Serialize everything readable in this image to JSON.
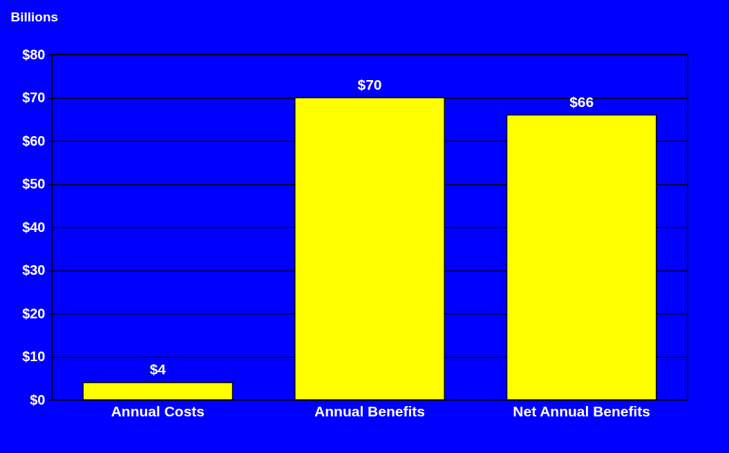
{
  "chart_data": {
    "type": "bar",
    "ylabel": "Billions",
    "categories": [
      "Annual Costs",
      "Annual Benefits",
      "Net Annual Benefits"
    ],
    "values": [
      4,
      70,
      66
    ],
    "color": "#ffff00",
    "value_labels": [
      "$4",
      "$70",
      "$66"
    ],
    "ylim": [
      0,
      80
    ],
    "yticks": [
      {
        "value": 0,
        "label": "$0"
      },
      {
        "value": 10,
        "label": "$10"
      },
      {
        "value": 20,
        "label": "$20"
      },
      {
        "value": 30,
        "label": "$30"
      },
      {
        "value": 40,
        "label": "$40"
      },
      {
        "value": 50,
        "label": "$50"
      },
      {
        "value": 60,
        "label": "$60"
      },
      {
        "value": 70,
        "label": "$70"
      },
      {
        "value": 80,
        "label": "$80"
      }
    ],
    "grid": "y"
  }
}
